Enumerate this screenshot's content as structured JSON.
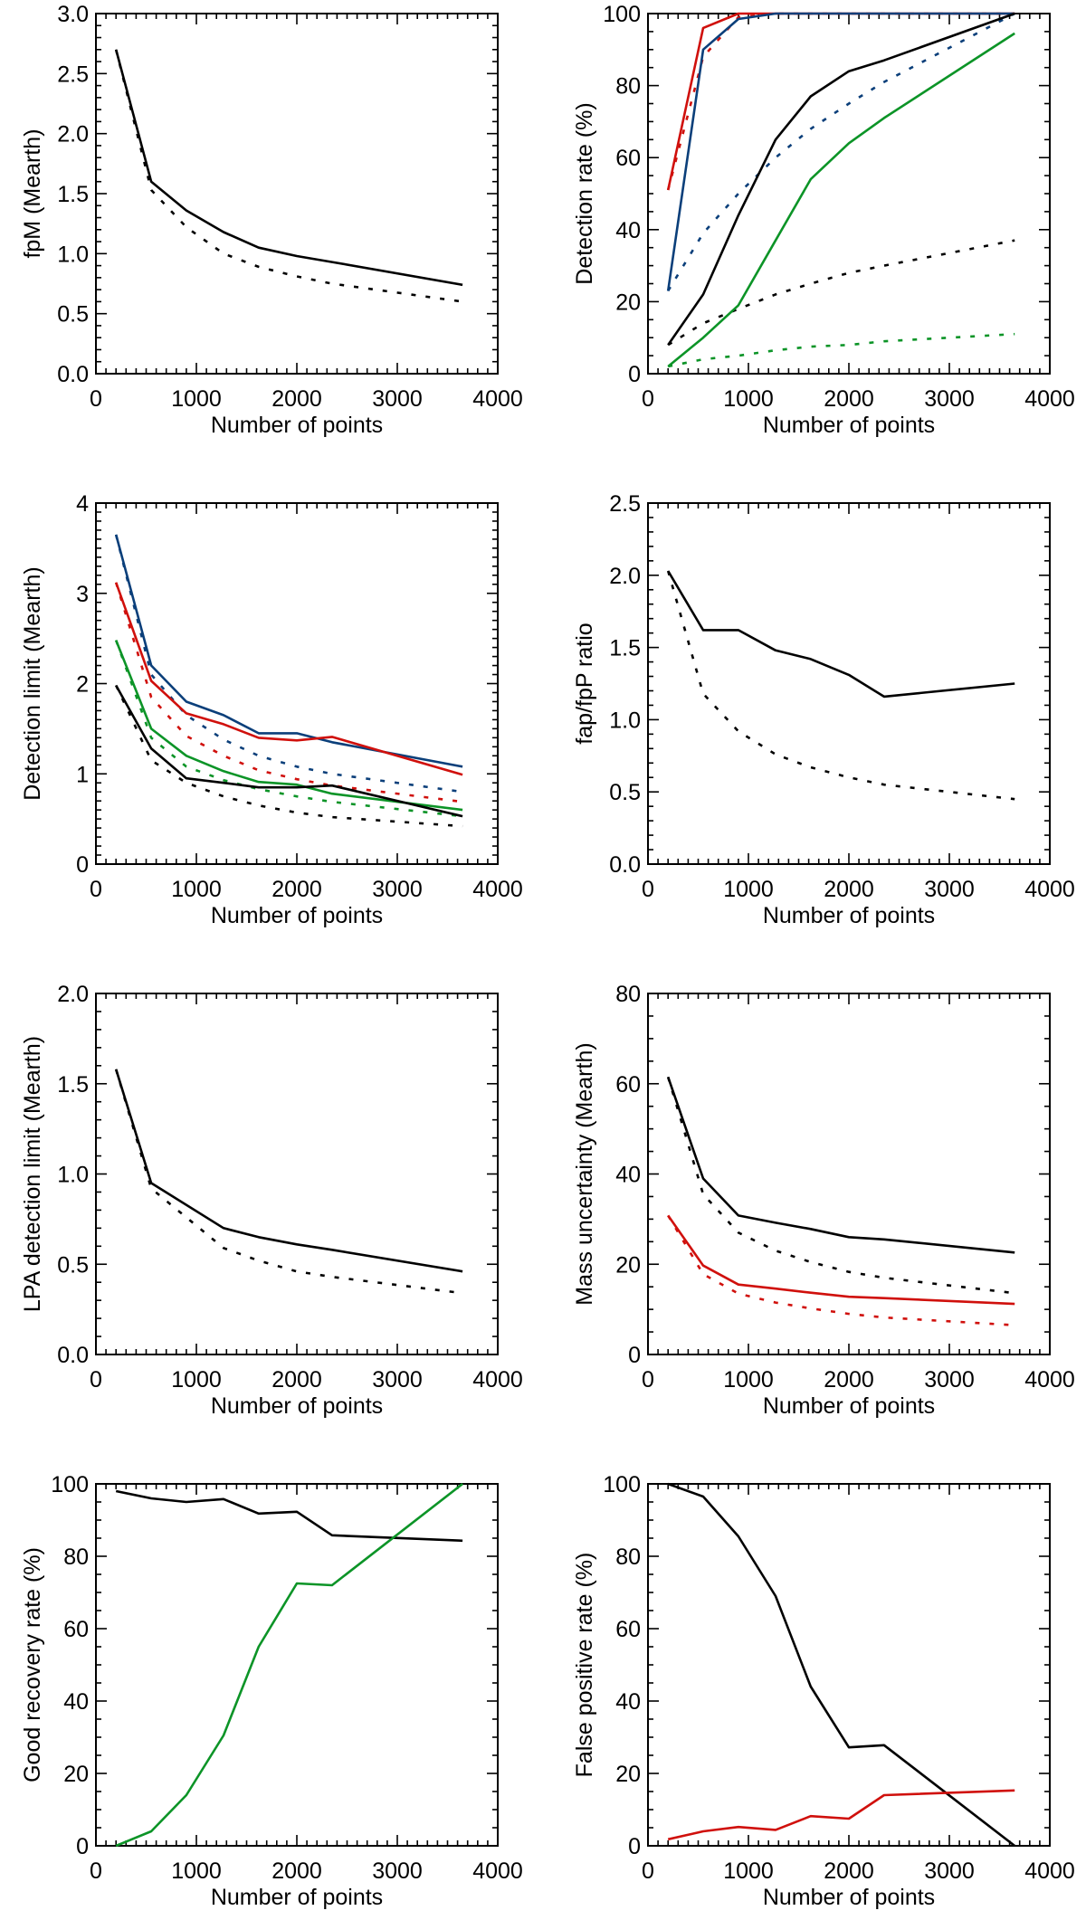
{
  "colors": {
    "black": "#000000",
    "red": "#d0100c",
    "blue": "#0b3f7a",
    "green": "#0c9427"
  },
  "chart_data": [
    {
      "id": "fpm",
      "type": "line",
      "title": "",
      "xlabel": "Number of points",
      "ylabel": "fpM (Mearth)",
      "xlim": [
        0,
        4000
      ],
      "ylim": [
        0,
        3.0
      ],
      "xticks": [
        0,
        1000,
        2000,
        3000,
        4000
      ],
      "xtick_labels": [
        "0",
        "1000",
        "2000",
        "3000",
        "4000"
      ],
      "yticks": [
        0,
        0.5,
        1.0,
        1.5,
        2.0,
        2.5,
        3.0
      ],
      "ytick_labels": [
        "0.0",
        "0.5",
        "1.0",
        "1.5",
        "2.0",
        "2.5",
        "3.0"
      ],
      "y_minor_per_major": 5,
      "x_minor_per_major": 10,
      "grid": false,
      "series": [
        {
          "name": "solid-black",
          "color": "black",
          "style": "solid",
          "x": [
            200,
            550,
            900,
            1270,
            1620,
            2000,
            2350,
            3650
          ],
          "y": [
            2.7,
            1.6,
            1.36,
            1.18,
            1.05,
            0.98,
            0.93,
            0.74
          ]
        },
        {
          "name": "dotted-black",
          "color": "black",
          "style": "dotted",
          "x": [
            200,
            550,
            900,
            1270,
            1620,
            2000,
            2350,
            3650
          ],
          "y": [
            2.7,
            1.53,
            1.22,
            1.0,
            0.89,
            0.81,
            0.75,
            0.6
          ]
        }
      ]
    },
    {
      "id": "detection-rate",
      "type": "line",
      "title": "",
      "xlabel": "Number of points",
      "ylabel": "Detection rate (%)",
      "xlim": [
        0,
        4000
      ],
      "ylim": [
        0,
        100
      ],
      "xticks": [
        0,
        1000,
        2000,
        3000,
        4000
      ],
      "xtick_labels": [
        "0",
        "1000",
        "2000",
        "3000",
        "4000"
      ],
      "yticks": [
        0,
        20,
        40,
        60,
        80,
        100
      ],
      "ytick_labels": [
        "0",
        "20",
        "40",
        "60",
        "80",
        "100"
      ],
      "y_minor_per_major": 4,
      "x_minor_per_major": 10,
      "grid": false,
      "series": [
        {
          "name": "solid-red",
          "color": "red",
          "style": "solid",
          "x": [
            200,
            550,
            900,
            1270,
            1620,
            2000,
            2350,
            3650
          ],
          "y": [
            51,
            96,
            100,
            100,
            100,
            100,
            100,
            100
          ]
        },
        {
          "name": "dotted-red",
          "color": "red",
          "style": "dotted",
          "x": [
            200,
            550,
            900,
            1270,
            1620,
            2000,
            2350,
            3650
          ],
          "y": [
            51,
            88,
            99,
            100,
            100,
            100,
            100,
            100
          ]
        },
        {
          "name": "solid-blue",
          "color": "blue",
          "style": "solid",
          "x": [
            200,
            550,
            900,
            1270,
            1620,
            2000,
            2350,
            3650
          ],
          "y": [
            23,
            90,
            98.5,
            100,
            100,
            100,
            100,
            100
          ]
        },
        {
          "name": "dotted-blue",
          "color": "blue",
          "style": "dotted",
          "x": [
            200,
            550,
            900,
            1270,
            1620,
            2000,
            2350,
            3650
          ],
          "y": [
            23,
            39,
            50,
            60,
            68,
            75,
            81,
            100
          ]
        },
        {
          "name": "solid-black",
          "color": "black",
          "style": "solid",
          "x": [
            200,
            550,
            900,
            1270,
            1620,
            2000,
            2350,
            3650
          ],
          "y": [
            8,
            22,
            44,
            65,
            77,
            84,
            87,
            100
          ]
        },
        {
          "name": "dotted-black",
          "color": "black",
          "style": "dotted",
          "x": [
            200,
            550,
            900,
            1270,
            1620,
            2000,
            2350,
            3650
          ],
          "y": [
            8,
            14,
            18,
            22,
            25,
            28,
            30,
            37
          ]
        },
        {
          "name": "solid-green",
          "color": "green",
          "style": "solid",
          "x": [
            200,
            550,
            900,
            1270,
            1620,
            2000,
            2350,
            3650
          ],
          "y": [
            2,
            10,
            19,
            37,
            54,
            64,
            71,
            94.5
          ]
        },
        {
          "name": "dotted-green",
          "color": "green",
          "style": "dotted",
          "x": [
            200,
            550,
            900,
            1270,
            1620,
            2000,
            2350,
            3650
          ],
          "y": [
            2,
            4,
            5,
            6.5,
            7.5,
            8,
            9,
            11
          ]
        }
      ]
    },
    {
      "id": "detection-limit",
      "type": "line",
      "title": "",
      "xlabel": "Number of points",
      "ylabel": "Detection limit (Mearth)",
      "xlim": [
        0,
        4000
      ],
      "ylim": [
        0,
        4
      ],
      "xticks": [
        0,
        1000,
        2000,
        3000,
        4000
      ],
      "xtick_labels": [
        "0",
        "1000",
        "2000",
        "3000",
        "4000"
      ],
      "yticks": [
        0,
        1,
        2,
        3,
        4
      ],
      "ytick_labels": [
        "0",
        "1",
        "2",
        "3",
        "4"
      ],
      "y_minor_per_major": 10,
      "x_minor_per_major": 10,
      "grid": false,
      "series": [
        {
          "name": "solid-blue",
          "color": "blue",
          "style": "solid",
          "x": [
            200,
            550,
            900,
            1270,
            1620,
            2000,
            2350,
            3650
          ],
          "y": [
            3.65,
            2.2,
            1.8,
            1.65,
            1.45,
            1.45,
            1.35,
            1.08
          ]
        },
        {
          "name": "dotted-blue",
          "color": "blue",
          "style": "dotted",
          "x": [
            200,
            550,
            900,
            1270,
            1620,
            2000,
            2350,
            3650
          ],
          "y": [
            3.65,
            2.1,
            1.65,
            1.38,
            1.2,
            1.08,
            1.0,
            0.8
          ]
        },
        {
          "name": "solid-red",
          "color": "red",
          "style": "solid",
          "x": [
            200,
            550,
            900,
            1270,
            1620,
            2000,
            2350,
            3650
          ],
          "y": [
            3.12,
            2.03,
            1.67,
            1.55,
            1.4,
            1.37,
            1.41,
            0.99
          ]
        },
        {
          "name": "dotted-red",
          "color": "red",
          "style": "dotted",
          "x": [
            200,
            550,
            900,
            1270,
            1620,
            2000,
            2350,
            3650
          ],
          "y": [
            3.12,
            1.85,
            1.42,
            1.2,
            1.04,
            0.94,
            0.87,
            0.69
          ]
        },
        {
          "name": "solid-green",
          "color": "green",
          "style": "solid",
          "x": [
            200,
            550,
            900,
            1270,
            1620,
            2000,
            2350,
            3650
          ],
          "y": [
            2.48,
            1.5,
            1.2,
            1.03,
            0.91,
            0.88,
            0.78,
            0.6
          ]
        },
        {
          "name": "dotted-green",
          "color": "green",
          "style": "dotted",
          "x": [
            200,
            550,
            900,
            1270,
            1620,
            2000,
            2350,
            3650
          ],
          "y": [
            2.48,
            1.4,
            1.08,
            0.93,
            0.83,
            0.75,
            0.69,
            0.53
          ]
        },
        {
          "name": "solid-black",
          "color": "black",
          "style": "solid",
          "x": [
            200,
            550,
            900,
            1270,
            1620,
            2000,
            2350,
            3650
          ],
          "y": [
            1.98,
            1.28,
            0.95,
            0.9,
            0.85,
            0.85,
            0.87,
            0.53
          ]
        },
        {
          "name": "dotted-black",
          "color": "black",
          "style": "dotted",
          "x": [
            200,
            550,
            900,
            1270,
            1620,
            2000,
            2350,
            3650
          ],
          "y": [
            1.98,
            1.15,
            0.9,
            0.75,
            0.65,
            0.57,
            0.52,
            0.42
          ]
        }
      ]
    },
    {
      "id": "fap-fpp-ratio",
      "type": "line",
      "title": "",
      "xlabel": "Number of points",
      "ylabel": "fap/fpP ratio",
      "xlim": [
        0,
        4000
      ],
      "ylim": [
        0,
        2.5
      ],
      "xticks": [
        0,
        1000,
        2000,
        3000,
        4000
      ],
      "xtick_labels": [
        "0",
        "1000",
        "2000",
        "3000",
        "4000"
      ],
      "yticks": [
        0,
        0.5,
        1.0,
        1.5,
        2.0,
        2.5
      ],
      "ytick_labels": [
        "0.0",
        "0.5",
        "1.0",
        "1.5",
        "2.0",
        "2.5"
      ],
      "y_minor_per_major": 5,
      "x_minor_per_major": 10,
      "grid": false,
      "series": [
        {
          "name": "solid-black",
          "color": "black",
          "style": "solid",
          "x": [
            200,
            550,
            900,
            1270,
            1620,
            2000,
            2350,
            3650
          ],
          "y": [
            2.03,
            1.62,
            1.62,
            1.48,
            1.42,
            1.31,
            1.16,
            1.25
          ]
        },
        {
          "name": "dotted-black",
          "color": "black",
          "style": "dotted",
          "x": [
            200,
            550,
            900,
            1270,
            1620,
            2000,
            2350,
            3650
          ],
          "y": [
            2.03,
            1.18,
            0.92,
            0.76,
            0.67,
            0.6,
            0.55,
            0.45
          ]
        }
      ]
    },
    {
      "id": "lpa-detection-limit",
      "type": "line",
      "title": "",
      "xlabel": "Number of points",
      "ylabel": "LPA detection limit (Mearth)",
      "xlim": [
        0,
        4000
      ],
      "ylim": [
        0,
        2.0
      ],
      "xticks": [
        0,
        1000,
        2000,
        3000,
        4000
      ],
      "xtick_labels": [
        "0",
        "1000",
        "2000",
        "3000",
        "4000"
      ],
      "yticks": [
        0,
        0.5,
        1.0,
        1.5,
        2.0
      ],
      "ytick_labels": [
        "0.0",
        "0.5",
        "1.0",
        "1.5",
        "2.0"
      ],
      "y_minor_per_major": 5,
      "x_minor_per_major": 10,
      "grid": false,
      "series": [
        {
          "name": "solid-black",
          "color": "black",
          "style": "solid",
          "x": [
            200,
            550,
            1270,
            1620,
            2000,
            2350,
            3650
          ],
          "y": [
            1.58,
            0.95,
            0.7,
            0.65,
            0.61,
            0.58,
            0.46
          ]
        },
        {
          "name": "dotted-black",
          "color": "black",
          "style": "dotted",
          "x": [
            200,
            550,
            1270,
            1620,
            2000,
            2350,
            3650
          ],
          "y": [
            1.58,
            0.92,
            0.59,
            0.52,
            0.46,
            0.43,
            0.34
          ]
        }
      ]
    },
    {
      "id": "mass-uncertainty",
      "type": "line",
      "title": "",
      "xlabel": "Number of points",
      "ylabel": "Mass uncertainty (Mearth)",
      "xlim": [
        0,
        4000
      ],
      "ylim": [
        0,
        80
      ],
      "xticks": [
        0,
        1000,
        2000,
        3000,
        4000
      ],
      "xtick_labels": [
        "0",
        "1000",
        "2000",
        "3000",
        "4000"
      ],
      "yticks": [
        0,
        20,
        40,
        60,
        80
      ],
      "ytick_labels": [
        "0",
        "20",
        "40",
        "60",
        "80"
      ],
      "y_minor_per_major": 4,
      "x_minor_per_major": 10,
      "grid": false,
      "series": [
        {
          "name": "solid-black",
          "color": "black",
          "style": "solid",
          "x": [
            200,
            550,
            900,
            1270,
            1620,
            2000,
            2350,
            3650
          ],
          "y": [
            61.5,
            39,
            30.8,
            29.2,
            27.8,
            26,
            25.5,
            22.6
          ]
        },
        {
          "name": "dotted-black",
          "color": "black",
          "style": "dotted",
          "x": [
            200,
            550,
            900,
            1270,
            1620,
            2000,
            2350,
            3650
          ],
          "y": [
            61.5,
            35.5,
            27,
            23,
            20.5,
            18.3,
            17,
            13.6
          ]
        },
        {
          "name": "solid-red",
          "color": "red",
          "style": "solid",
          "x": [
            200,
            550,
            900,
            1270,
            1620,
            2000,
            2350,
            3650
          ],
          "y": [
            30.8,
            19.7,
            15.5,
            14.6,
            13.7,
            12.8,
            12.5,
            11.2
          ]
        },
        {
          "name": "dotted-red",
          "color": "red",
          "style": "dotted",
          "x": [
            200,
            550,
            900,
            1270,
            1620,
            2000,
            2350,
            3650
          ],
          "y": [
            30.8,
            17.8,
            13.5,
            11.5,
            10.2,
            9,
            8.2,
            6.5
          ]
        }
      ]
    },
    {
      "id": "good-recovery-rate",
      "type": "line",
      "title": "",
      "xlabel": "Number of points",
      "ylabel": "Good recovery rate (%)",
      "xlim": [
        0,
        4000
      ],
      "ylim": [
        0,
        100
      ],
      "xticks": [
        0,
        1000,
        2000,
        3000,
        4000
      ],
      "xtick_labels": [
        "0",
        "1000",
        "2000",
        "3000",
        "4000"
      ],
      "yticks": [
        0,
        20,
        40,
        60,
        80,
        100
      ],
      "ytick_labels": [
        "0",
        "20",
        "40",
        "60",
        "80",
        "100"
      ],
      "y_minor_per_major": 4,
      "x_minor_per_major": 10,
      "grid": false,
      "series": [
        {
          "name": "solid-black",
          "color": "black",
          "style": "solid",
          "x": [
            200,
            550,
            900,
            1270,
            1620,
            2000,
            2350,
            3650
          ],
          "y": [
            98,
            96,
            95,
            95.8,
            91.8,
            92.3,
            85.8,
            84.3
          ]
        },
        {
          "name": "solid-green",
          "color": "green",
          "style": "solid",
          "x": [
            200,
            550,
            900,
            1270,
            1620,
            2000,
            2350,
            3650
          ],
          "y": [
            0,
            4,
            14,
            30.5,
            55,
            72.5,
            72,
            100
          ]
        }
      ]
    },
    {
      "id": "false-positive-rate",
      "type": "line",
      "title": "",
      "xlabel": "Number of points",
      "ylabel": "False positive rate (%)",
      "xlim": [
        0,
        4000
      ],
      "ylim": [
        0,
        100
      ],
      "xticks": [
        0,
        1000,
        2000,
        3000,
        4000
      ],
      "xtick_labels": [
        "0",
        "1000",
        "2000",
        "3000",
        "4000"
      ],
      "yticks": [
        0,
        20,
        40,
        60,
        80,
        100
      ],
      "ytick_labels": [
        "0",
        "20",
        "40",
        "60",
        "80",
        "100"
      ],
      "y_minor_per_major": 4,
      "x_minor_per_major": 10,
      "grid": false,
      "series": [
        {
          "name": "solid-black",
          "color": "black",
          "style": "solid",
          "x": [
            200,
            550,
            900,
            1270,
            1620,
            2000,
            2350,
            3650
          ],
          "y": [
            100,
            96.5,
            85.5,
            69,
            44,
            27.2,
            27.8,
            0
          ]
        },
        {
          "name": "solid-red",
          "color": "red",
          "style": "solid",
          "x": [
            200,
            550,
            900,
            1270,
            1620,
            2000,
            2350,
            3650
          ],
          "y": [
            1.8,
            4,
            5.2,
            4.4,
            8.2,
            7.5,
            14,
            15.3
          ]
        }
      ]
    }
  ]
}
